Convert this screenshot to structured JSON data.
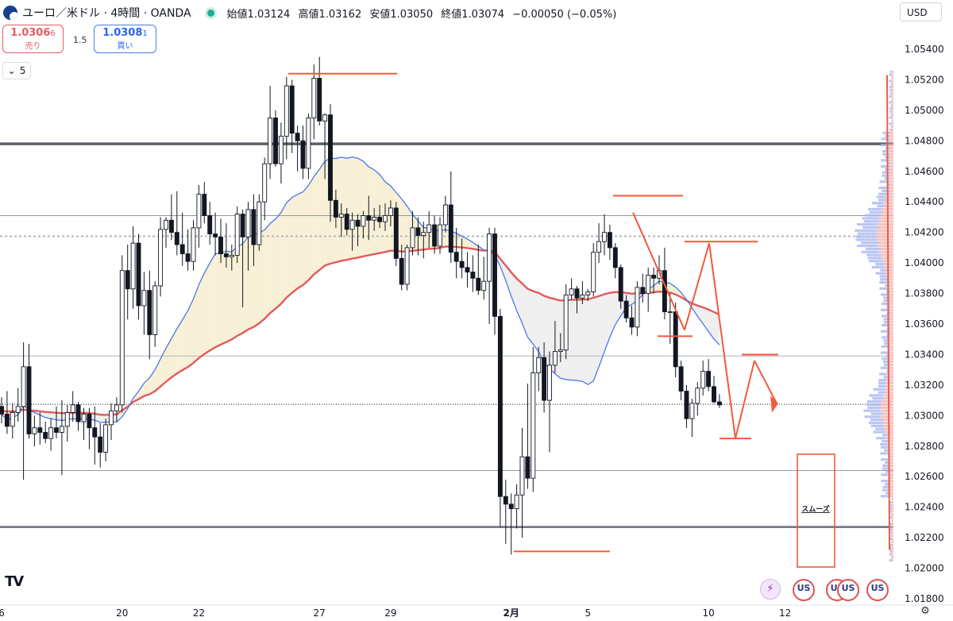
{
  "header": {
    "symbol": "ユーロ／米ドル · 4時間 · OANDA",
    "open": "始値1.03124",
    "high": "高値1.03162",
    "low": "安値1.03050",
    "close": "終値1.03074",
    "change": "−0.00050 (−0.05%)",
    "currency": "USD"
  },
  "trade": {
    "sell_main": "1.0306",
    "sell_sup": "6",
    "sell_label": "売り",
    "spread": "1.5",
    "buy_main": "1.0308",
    "buy_sup": "1",
    "buy_label": "買い"
  },
  "collapse_label": "5",
  "logo_text": "TV",
  "annotation_text": "スムーズ",
  "events": [
    "bolt-event-icon",
    "us-flag-event-icon",
    "us-flag-event-icon",
    "us-flag-event-icon",
    "us-flag-event-icon"
  ],
  "chart_data": {
    "type": "candlestick",
    "y_ticks": [
      "1.05400",
      "1.05200",
      "1.05000",
      "1.04800",
      "1.04600",
      "1.04400",
      "1.04200",
      "1.04000",
      "1.03800",
      "1.03600",
      "1.03400",
      "1.03200",
      "1.03000",
      "1.02800",
      "1.02600",
      "1.02400",
      "1.02200",
      "1.02000",
      "1.01800"
    ],
    "ylim": [
      1.0173,
      1.0559
    ],
    "x_ticks": [
      {
        "label": "6",
        "i": 0
      },
      {
        "label": "20",
        "i": 22
      },
      {
        "label": "22",
        "i": 36
      },
      {
        "label": "27",
        "i": 58
      },
      {
        "label": "29",
        "i": 71
      },
      {
        "label": "2月",
        "i": 93
      },
      {
        "label": "5",
        "i": 107
      },
      {
        "label": "10",
        "i": 129
      },
      {
        "label": "12",
        "i": 143
      }
    ],
    "last_price": 1.03074,
    "candles": [
      [
        1.0306,
        1.0312,
        1.0295,
        1.0301
      ],
      [
        1.0301,
        1.0316,
        1.0288,
        1.0293
      ],
      [
        1.0293,
        1.0308,
        1.0285,
        1.0302
      ],
      [
        1.0302,
        1.0318,
        1.0296,
        1.0306
      ],
      [
        1.0306,
        1.0348,
        1.0258,
        1.0332
      ],
      [
        1.0332,
        1.0347,
        1.0285,
        1.0288
      ],
      [
        1.0288,
        1.03,
        1.028,
        1.0292
      ],
      [
        1.0292,
        1.0302,
        1.0281,
        1.0289
      ],
      [
        1.0289,
        1.0296,
        1.0282,
        1.0285
      ],
      [
        1.0285,
        1.0298,
        1.0277,
        1.0292
      ],
      [
        1.0292,
        1.0306,
        1.0285,
        1.0289
      ],
      [
        1.0289,
        1.031,
        1.0261,
        1.0293
      ],
      [
        1.0293,
        1.0307,
        1.0283,
        1.0302
      ],
      [
        1.0302,
        1.0316,
        1.0296,
        1.0307
      ],
      [
        1.0307,
        1.0309,
        1.029,
        1.0296
      ],
      [
        1.0296,
        1.0305,
        1.0284,
        1.0301
      ],
      [
        1.0301,
        1.0305,
        1.0278,
        1.0292
      ],
      [
        1.0292,
        1.0306,
        1.0268,
        1.0286
      ],
      [
        1.0286,
        1.0295,
        1.0266,
        1.0276
      ],
      [
        1.0276,
        1.0298,
        1.027,
        1.0294
      ],
      [
        1.0294,
        1.0308,
        1.0284,
        1.0303
      ],
      [
        1.0303,
        1.0312,
        1.0296,
        1.0307
      ],
      [
        1.0307,
        1.0405,
        1.0302,
        1.0395
      ],
      [
        1.0395,
        1.0412,
        1.0363,
        1.0383
      ],
      [
        1.0383,
        1.0424,
        1.037,
        1.0413
      ],
      [
        1.0413,
        1.0419,
        1.0363,
        1.0372
      ],
      [
        1.0372,
        1.0394,
        1.0353,
        1.0382
      ],
      [
        1.0382,
        1.0395,
        1.0337,
        1.0353
      ],
      [
        1.0353,
        1.0388,
        1.0345,
        1.0385
      ],
      [
        1.0385,
        1.043,
        1.0378,
        1.0422
      ],
      [
        1.0422,
        1.043,
        1.041,
        1.0428
      ],
      [
        1.0428,
        1.0445,
        1.0415,
        1.042
      ],
      [
        1.042,
        1.0447,
        1.0405,
        1.0412
      ],
      [
        1.0412,
        1.0433,
        1.0398,
        1.0406
      ],
      [
        1.0406,
        1.0422,
        1.0395,
        1.0401
      ],
      [
        1.0401,
        1.0428,
        1.0395,
        1.0423
      ],
      [
        1.0423,
        1.0451,
        1.041,
        1.0445
      ],
      [
        1.0445,
        1.0453,
        1.0426,
        1.0431
      ],
      [
        1.0431,
        1.044,
        1.0412,
        1.0419
      ],
      [
        1.0419,
        1.0433,
        1.0405,
        1.0417
      ],
      [
        1.0417,
        1.0429,
        1.04,
        1.0406
      ],
      [
        1.0406,
        1.0426,
        1.0397,
        1.0404
      ],
      [
        1.0404,
        1.0412,
        1.0395,
        1.0405
      ],
      [
        1.0405,
        1.0437,
        1.04,
        1.0432
      ],
      [
        1.0432,
        1.0435,
        1.0371,
        1.0417
      ],
      [
        1.0417,
        1.044,
        1.0395,
        1.0435
      ],
      [
        1.0435,
        1.0445,
        1.0398,
        1.0412
      ],
      [
        1.0412,
        1.0445,
        1.0408,
        1.044
      ],
      [
        1.044,
        1.0469,
        1.0428,
        1.0465
      ],
      [
        1.0465,
        1.0516,
        1.0455,
        1.0495
      ],
      [
        1.0495,
        1.05,
        1.0463,
        1.0465
      ],
      [
        1.0465,
        1.0492,
        1.0452,
        1.0483
      ],
      [
        1.0483,
        1.0522,
        1.0468,
        1.0516
      ],
      [
        1.0516,
        1.052,
        1.0472,
        1.0485
      ],
      [
        1.0485,
        1.049,
        1.046,
        1.048
      ],
      [
        1.048,
        1.049,
        1.0455,
        1.0462
      ],
      [
        1.0462,
        1.0498,
        1.0455,
        1.0495
      ],
      [
        1.0495,
        1.053,
        1.0481,
        1.0521
      ],
      [
        1.0521,
        1.0535,
        1.049,
        1.0493
      ],
      [
        1.0493,
        1.0498,
        1.0455,
        1.0497
      ],
      [
        1.0497,
        1.0504,
        1.0427,
        1.0441
      ],
      [
        1.0441,
        1.0448,
        1.0423,
        1.043
      ],
      [
        1.043,
        1.0439,
        1.0417,
        1.0432
      ],
      [
        1.0432,
        1.0436,
        1.0418,
        1.0422
      ],
      [
        1.0422,
        1.0433,
        1.0408,
        1.0428
      ],
      [
        1.0428,
        1.0432,
        1.0411,
        1.0424
      ],
      [
        1.0424,
        1.0434,
        1.0416,
        1.0431
      ],
      [
        1.0431,
        1.0444,
        1.0415,
        1.0428
      ],
      [
        1.0428,
        1.0436,
        1.0421,
        1.043
      ],
      [
        1.043,
        1.0438,
        1.0423,
        1.0427
      ],
      [
        1.0427,
        1.0439,
        1.0421,
        1.0431
      ],
      [
        1.0431,
        1.0441,
        1.0424,
        1.0436
      ],
      [
        1.0436,
        1.044,
        1.0398,
        1.0403
      ],
      [
        1.0403,
        1.0412,
        1.0382,
        1.0386
      ],
      [
        1.0386,
        1.0412,
        1.0382,
        1.041
      ],
      [
        1.041,
        1.0434,
        1.0405,
        1.0423
      ],
      [
        1.0423,
        1.043,
        1.0405,
        1.0418
      ],
      [
        1.0418,
        1.0427,
        1.0403,
        1.042
      ],
      [
        1.042,
        1.0434,
        1.041,
        1.0425
      ],
      [
        1.0425,
        1.0431,
        1.0406,
        1.0411
      ],
      [
        1.0411,
        1.043,
        1.0406,
        1.0425
      ],
      [
        1.0425,
        1.0444,
        1.042,
        1.0438
      ],
      [
        1.0438,
        1.046,
        1.04,
        1.0407
      ],
      [
        1.0407,
        1.0423,
        1.039,
        1.0401
      ],
      [
        1.0401,
        1.0416,
        1.039,
        1.0397
      ],
      [
        1.0397,
        1.0407,
        1.0384,
        1.0394
      ],
      [
        1.0394,
        1.0405,
        1.0381,
        1.039
      ],
      [
        1.039,
        1.0412,
        1.0379,
        1.0382
      ],
      [
        1.0382,
        1.0404,
        1.0376,
        1.0388
      ],
      [
        1.0388,
        1.0423,
        1.036,
        1.0419
      ],
      [
        1.0419,
        1.0423,
        1.0353,
        1.0365
      ],
      [
        1.0365,
        1.037,
        1.0227,
        1.0247
      ],
      [
        1.0247,
        1.0258,
        1.0216,
        1.0242
      ],
      [
        1.0242,
        1.0249,
        1.0209,
        1.0239
      ],
      [
        1.0239,
        1.0255,
        1.0226,
        1.0248
      ],
      [
        1.0248,
        1.0292,
        1.022,
        1.0273
      ],
      [
        1.0273,
        1.0321,
        1.0252,
        1.0259
      ],
      [
        1.0259,
        1.0345,
        1.025,
        1.0328
      ],
      [
        1.0328,
        1.0345,
        1.0316,
        1.0338
      ],
      [
        1.0338,
        1.0348,
        1.0302,
        1.031
      ],
      [
        1.031,
        1.0342,
        1.0276,
        1.0333
      ],
      [
        1.0333,
        1.0362,
        1.0328,
        1.0342
      ],
      [
        1.0342,
        1.0354,
        1.0335,
        1.0343
      ],
      [
        1.0343,
        1.0386,
        1.0337,
        1.0379
      ],
      [
        1.0379,
        1.039,
        1.0376,
        1.0383
      ],
      [
        1.0383,
        1.0385,
        1.0367,
        1.0377
      ],
      [
        1.0377,
        1.0388,
        1.0373,
        1.0379
      ],
      [
        1.0379,
        1.0383,
        1.0375,
        1.0381
      ],
      [
        1.0381,
        1.0413,
        1.0378,
        1.0407
      ],
      [
        1.0407,
        1.0426,
        1.04,
        1.0414
      ],
      [
        1.0414,
        1.0432,
        1.0405,
        1.042
      ],
      [
        1.042,
        1.0425,
        1.0402,
        1.041
      ],
      [
        1.041,
        1.0413,
        1.039,
        1.0397
      ],
      [
        1.0397,
        1.0399,
        1.037,
        1.0375
      ],
      [
        1.0375,
        1.0379,
        1.0361,
        1.0364
      ],
      [
        1.0364,
        1.0372,
        1.0353,
        1.0358
      ],
      [
        1.0358,
        1.0388,
        1.0352,
        1.0384
      ],
      [
        1.0384,
        1.0393,
        1.0374,
        1.038
      ],
      [
        1.038,
        1.0397,
        1.0368,
        1.0392
      ],
      [
        1.0392,
        1.0397,
        1.038,
        1.039
      ],
      [
        1.039,
        1.0405,
        1.0386,
        1.0395
      ],
      [
        1.0395,
        1.041,
        1.0363,
        1.0368
      ],
      [
        1.0368,
        1.038,
        1.0347,
        1.0368
      ],
      [
        1.0368,
        1.0374,
        1.0325,
        1.0332
      ],
      [
        1.0332,
        1.0336,
        1.031,
        1.0316
      ],
      [
        1.0316,
        1.032,
        1.0292,
        1.0298
      ],
      [
        1.0298,
        1.0311,
        1.0286,
        1.0308
      ],
      [
        1.0308,
        1.0322,
        1.03,
        1.0318
      ],
      [
        1.0318,
        1.0336,
        1.0313,
        1.0329
      ],
      [
        1.0329,
        1.0337,
        1.0316,
        1.0319
      ],
      [
        1.0319,
        1.0326,
        1.0308,
        1.0309
      ],
      [
        1.0309,
        1.0314,
        1.0305,
        1.0307
      ]
    ],
    "annotations": {
      "horizontal_lines": [
        1.0478,
        1.0431,
        1.04175,
        1.0339,
        1.03074,
        1.0264,
        1.0227
      ],
      "ema_fill_color": "#f8f0d6"
    }
  }
}
